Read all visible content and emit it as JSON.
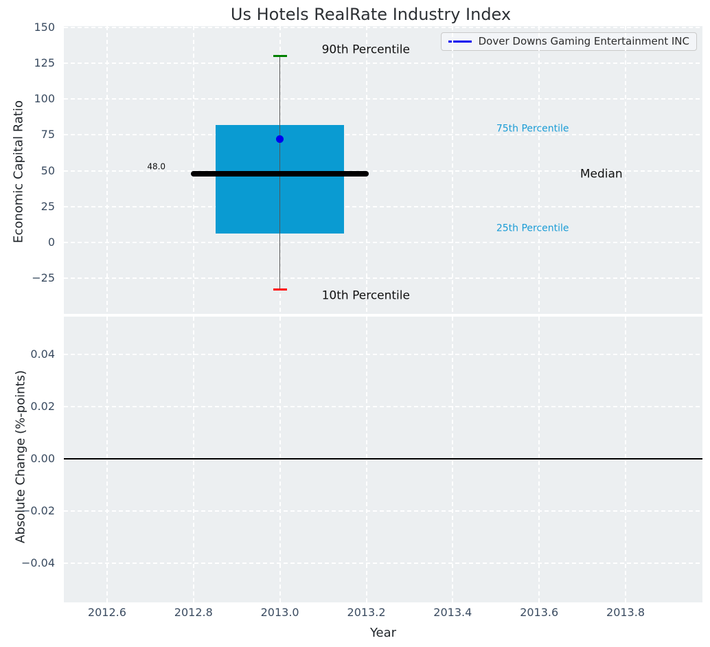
{
  "title": "Us Hotels RealRate Industry Index",
  "legend": {
    "label": "Dover Downs Gaming Entertainment INC",
    "line_color": "#0000ee"
  },
  "colors": {
    "figure_bg": "#ffffff",
    "plot_bg": "#eceff1",
    "grid": "#ffffff",
    "tick_label": "#3a4b60",
    "axis_label": "#1f2429",
    "title": "#2d3135",
    "box_fill": "#0a9bd2",
    "median_line": "#000000",
    "whisker_line": "#555555",
    "p90_cap": "#008000",
    "p10_cap": "#ff0000",
    "company_dot": "#0000ee",
    "percentile_text": "#1a9cd6",
    "annotation_text": "#111111",
    "zero_line": "#000000"
  },
  "chart_data": {
    "type": "boxplot",
    "title": "Us Hotels RealRate Industry Index",
    "xlabel": "Year",
    "xlim": [
      2012.5,
      2013.978
    ],
    "xticks": [
      2012.6,
      2012.8,
      2013.0,
      2013.2,
      2013.4,
      2013.6,
      2013.8
    ],
    "xtick_labels": [
      "2012.6",
      "2012.8",
      "2013.0",
      "2013.2",
      "2013.4",
      "2013.6",
      "2013.8"
    ],
    "grid": "white dashed gridlines on light gray panels",
    "legend_position": "upper right",
    "series": [
      {
        "name": "Dover Downs Gaming Entertainment INC",
        "x": 2013.0,
        "economic_capital_ratio": 72
      }
    ],
    "top_panel": {
      "ylabel": "Economic Capital Ratio",
      "ylim": [
        -50,
        151
      ],
      "yticks": [
        150,
        125,
        100,
        75,
        50,
        25,
        0,
        -25
      ],
      "ytick_labels": [
        "150",
        "125",
        "100",
        "75",
        "50",
        "25",
        "0",
        "−25"
      ],
      "box": {
        "x": 2013.0,
        "p90": 130,
        "p75": 82,
        "median": 48.0,
        "p25": 6,
        "p10": -33,
        "company_value": 72,
        "box_half_width": 0.149,
        "median_half_width": 0.2,
        "cap_half_width": 0.016
      },
      "annotations": [
        {
          "text": "90th Percentile",
          "x": 2013.199,
          "y": 134,
          "size": 17,
          "color": "#111111"
        },
        {
          "text": "75th Percentile",
          "x": 2013.585,
          "y": 79,
          "size": 14,
          "color": "#1a9cd6"
        },
        {
          "text": "Median",
          "x": 2013.744,
          "y": 47.5,
          "size": 17,
          "color": "#111111"
        },
        {
          "text": "25th Percentile",
          "x": 2013.585,
          "y": 9.5,
          "size": 14,
          "color": "#1a9cd6"
        },
        {
          "text": "10th Percentile",
          "x": 2013.199,
          "y": -37.5,
          "size": 17,
          "color": "#111111"
        },
        {
          "text": "48.0",
          "x": 2012.714,
          "y": 52.5,
          "size": 12,
          "color": "#111111"
        }
      ]
    },
    "bottom_panel": {
      "ylabel": "Absolute Change (%-points)",
      "ylim": [
        -0.055,
        0.0546
      ],
      "yticks": [
        0.04,
        0.02,
        0.0,
        -0.02,
        -0.04
      ],
      "ytick_labels": [
        "0.04",
        "0.02",
        "0.00",
        "−0.02",
        "−0.04"
      ],
      "zero_line_y": 0.0
    }
  }
}
